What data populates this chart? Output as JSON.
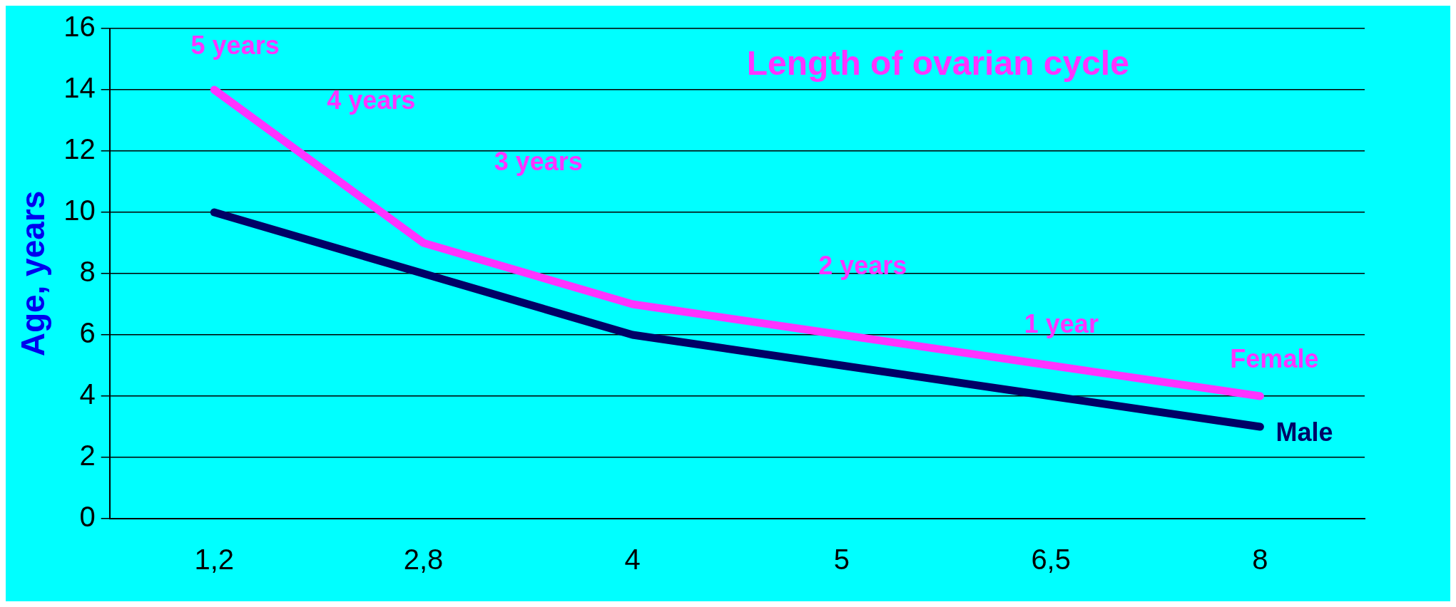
{
  "chart_data": {
    "type": "line",
    "title": "Length of ovarian cycle",
    "ylabel": "Age, years",
    "categories": [
      "1,2",
      "2,8",
      "4",
      "5",
      "6,5",
      "8"
    ],
    "series": [
      {
        "name": "Female",
        "color": "#ff33ff",
        "values": [
          14,
          9,
          7,
          6,
          5,
          4
        ]
      },
      {
        "name": "Male",
        "color": "#000066",
        "values": [
          10,
          8,
          6,
          5,
          4,
          3
        ]
      }
    ],
    "ylim": [
      0,
      16
    ],
    "yticks": [
      0,
      2,
      4,
      6,
      8,
      10,
      12,
      14,
      16
    ],
    "grid": "y",
    "legend": false,
    "marker": "none",
    "line_style": "solid",
    "annotations": [
      "5 years",
      "4 years",
      "3 years",
      "2 years",
      "1 year"
    ]
  }
}
